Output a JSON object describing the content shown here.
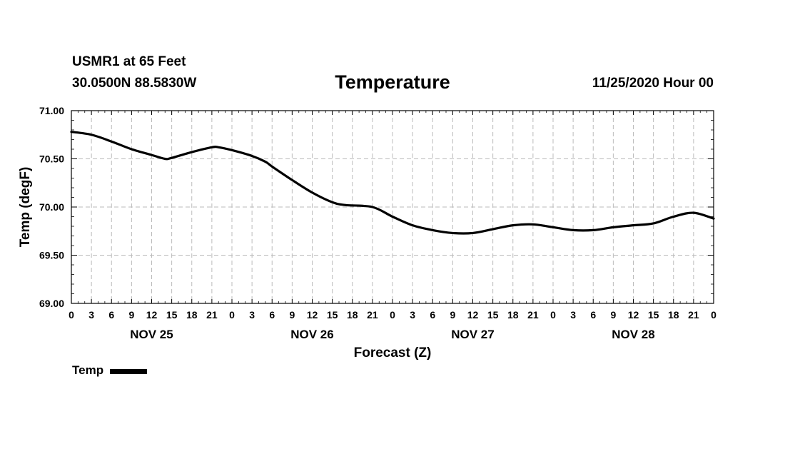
{
  "header": {
    "station": "USMR1 at 65 Feet",
    "coords": "30.0500N 88.5830W",
    "title": "Temperature",
    "issued": "11/25/2020 Hour 00"
  },
  "chart_data": {
    "type": "line",
    "title": "Temperature",
    "xlabel": "Forecast (Z)",
    "ylabel": "Temp (degF)",
    "ylim": [
      69.0,
      71.0
    ],
    "xlim": [
      0,
      96
    ],
    "grid": true,
    "y_ticks": [
      "71.00",
      "70.50",
      "70.00",
      "69.50",
      "69.00"
    ],
    "y_tick_values": [
      71.0,
      70.5,
      70.0,
      69.5,
      69.0
    ],
    "x_tick_hours": [
      0,
      3,
      6,
      9,
      12,
      15,
      18,
      21,
      24,
      27,
      30,
      33,
      36,
      39,
      42,
      45,
      48,
      51,
      54,
      57,
      60,
      63,
      66,
      69,
      72,
      75,
      78,
      81,
      84,
      87,
      90,
      93,
      96
    ],
    "x_tick_labels": [
      "0",
      "3",
      "6",
      "9",
      "12",
      "15",
      "18",
      "21",
      "0",
      "3",
      "6",
      "9",
      "12",
      "15",
      "18",
      "21",
      "0",
      "3",
      "6",
      "9",
      "12",
      "15",
      "18",
      "21",
      "0",
      "3",
      "6",
      "9",
      "12",
      "15",
      "18",
      "21",
      "0"
    ],
    "day_labels": [
      {
        "text": "NOV 25",
        "hour": 12
      },
      {
        "text": "NOV 26",
        "hour": 36
      },
      {
        "text": "NOV 27",
        "hour": 60
      },
      {
        "text": "NOV 28",
        "hour": 84
      }
    ],
    "legend_position": "bottom-left",
    "series": [
      {
        "name": "Temp",
        "color": "#000000",
        "x": [
          0,
          3,
          6,
          9,
          12,
          14,
          15,
          18,
          21,
          22,
          24,
          27,
          29,
          30,
          33,
          36,
          39,
          41,
          45,
          48,
          51,
          54,
          57,
          60,
          63,
          66,
          69,
          72,
          75,
          78,
          81,
          84,
          87,
          90,
          93,
          96
        ],
        "values": [
          70.78,
          70.75,
          70.68,
          70.6,
          70.54,
          70.5,
          70.51,
          70.57,
          70.62,
          70.62,
          70.59,
          70.53,
          70.47,
          70.42,
          70.28,
          70.15,
          70.05,
          70.02,
          70.0,
          69.9,
          69.81,
          69.76,
          69.73,
          69.73,
          69.77,
          69.81,
          69.82,
          69.79,
          69.76,
          69.76,
          69.79,
          69.81,
          69.83,
          69.9,
          69.94,
          69.88
        ]
      }
    ]
  },
  "legend": {
    "label": "Temp"
  }
}
